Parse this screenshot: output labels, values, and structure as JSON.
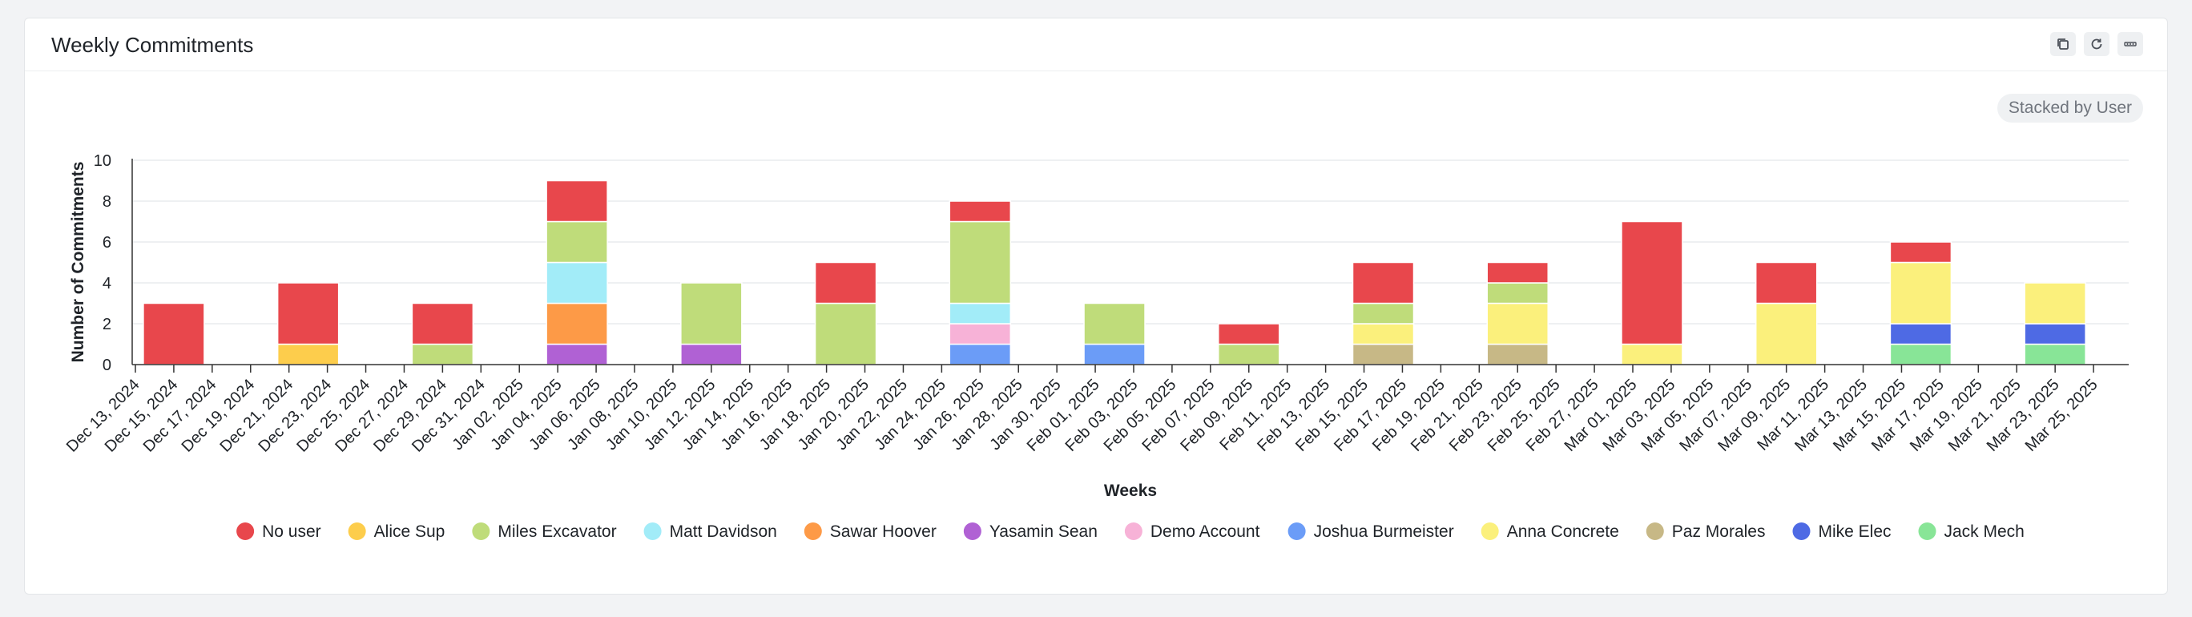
{
  "card": {
    "title": "Weekly Commitments",
    "stack_toggle": "Stacked by User",
    "tools": [
      {
        "icon": "copy-icon"
      },
      {
        "icon": "refresh-icon"
      },
      {
        "icon": "more-icon"
      }
    ]
  },
  "colors": {
    "No user": "#e8474c",
    "Alice Sup": "#fdcd4c",
    "Miles Excavator": "#bfdc7a",
    "Matt Davidson": "#a2ecf8",
    "Sawar Hoover": "#fd9a47",
    "Yasamin Sean": "#b061d4",
    "Demo Account": "#f7b2d7",
    "Joshua Burmeister": "#6b9cf7",
    "Anna Concrete": "#fbf07c",
    "Paz Morales": "#c7b886",
    "Mike Elec": "#4e6ae4",
    "Jack Mech": "#88e597"
  },
  "chart_data": {
    "type": "bar",
    "stacked": true,
    "xlabel": "Weeks",
    "ylabel": "Number of Commitments",
    "ylim": [
      0,
      10
    ],
    "yticks": [
      0,
      2,
      4,
      6,
      8,
      10
    ],
    "grid": true,
    "legend_position": "bottom",
    "x_ticks": [
      "Dec 13, 2024",
      "Dec 15, 2024",
      "Dec 17, 2024",
      "Dec 19, 2024",
      "Dec 21, 2024",
      "Dec 23, 2024",
      "Dec 25, 2024",
      "Dec 27, 2024",
      "Dec 29, 2024",
      "Dec 31, 2024",
      "Jan 02, 2025",
      "Jan 04, 2025",
      "Jan 06, 2025",
      "Jan 08, 2025",
      "Jan 10, 2025",
      "Jan 12, 2025",
      "Jan 14, 2025",
      "Jan 16, 2025",
      "Jan 18, 2025",
      "Jan 20, 2025",
      "Jan 22, 2025",
      "Jan 24, 2025",
      "Jan 26, 2025",
      "Jan 28, 2025",
      "Jan 30, 2025",
      "Feb 01, 2025",
      "Feb 03, 2025",
      "Feb 05, 2025",
      "Feb 07, 2025",
      "Feb 09, 2025",
      "Feb 11, 2025",
      "Feb 13, 2025",
      "Feb 15, 2025",
      "Feb 17, 2025",
      "Feb 19, 2025",
      "Feb 21, 2025",
      "Feb 23, 2025",
      "Feb 25, 2025",
      "Feb 27, 2025",
      "Mar 01, 2025",
      "Mar 03, 2025",
      "Mar 05, 2025",
      "Mar 07, 2025",
      "Mar 09, 2025",
      "Mar 11, 2025",
      "Mar 13, 2025",
      "Mar 15, 2025",
      "Mar 17, 2025",
      "Mar 19, 2025",
      "Mar 21, 2025",
      "Mar 23, 2025",
      "Mar 25, 2025"
    ],
    "bars": [
      {
        "x": "Dec 15, 2024",
        "segments": [
          [
            "No user",
            3
          ]
        ]
      },
      {
        "x": "Dec 22, 2024",
        "segments": [
          [
            "Alice Sup",
            1
          ],
          [
            "No user",
            3
          ]
        ]
      },
      {
        "x": "Dec 29, 2024",
        "segments": [
          [
            "Miles Excavator",
            1
          ],
          [
            "No user",
            2
          ]
        ]
      },
      {
        "x": "Jan 05, 2025",
        "segments": [
          [
            "Yasamin Sean",
            1
          ],
          [
            "Sawar Hoover",
            2
          ],
          [
            "Matt Davidson",
            2
          ],
          [
            "Miles Excavator",
            2
          ],
          [
            "No user",
            2
          ]
        ]
      },
      {
        "x": "Jan 12, 2025",
        "segments": [
          [
            "Yasamin Sean",
            1
          ],
          [
            "Miles Excavator",
            3
          ]
        ]
      },
      {
        "x": "Jan 19, 2025",
        "segments": [
          [
            "Miles Excavator",
            3
          ],
          [
            "No user",
            2
          ]
        ]
      },
      {
        "x": "Jan 26, 2025",
        "segments": [
          [
            "Joshua Burmeister",
            1
          ],
          [
            "Demo Account",
            1
          ],
          [
            "Matt Davidson",
            1
          ],
          [
            "Miles Excavator",
            4
          ],
          [
            "No user",
            1
          ]
        ]
      },
      {
        "x": "Feb 02, 2025",
        "segments": [
          [
            "Joshua Burmeister",
            1
          ],
          [
            "Miles Excavator",
            2
          ]
        ]
      },
      {
        "x": "Feb 09, 2025",
        "segments": [
          [
            "Miles Excavator",
            1
          ],
          [
            "No user",
            1
          ]
        ]
      },
      {
        "x": "Feb 16, 2025",
        "segments": [
          [
            "Paz Morales",
            1
          ],
          [
            "Anna Concrete",
            1
          ],
          [
            "Miles Excavator",
            1
          ],
          [
            "No user",
            2
          ]
        ]
      },
      {
        "x": "Feb 23, 2025",
        "segments": [
          [
            "Paz Morales",
            1
          ],
          [
            "Anna Concrete",
            2
          ],
          [
            "Miles Excavator",
            1
          ],
          [
            "No user",
            1
          ]
        ]
      },
      {
        "x": "Mar 02, 2025",
        "segments": [
          [
            "Anna Concrete",
            1
          ],
          [
            "No user",
            6
          ]
        ]
      },
      {
        "x": "Mar 09, 2025",
        "segments": [
          [
            "Anna Concrete",
            3
          ],
          [
            "No user",
            2
          ]
        ]
      },
      {
        "x": "Mar 16, 2025",
        "segments": [
          [
            "Jack Mech",
            1
          ],
          [
            "Mike Elec",
            1
          ],
          [
            "Anna Concrete",
            3
          ],
          [
            "No user",
            1
          ]
        ]
      },
      {
        "x": "Mar 23, 2025",
        "segments": [
          [
            "Jack Mech",
            1
          ],
          [
            "Mike Elec",
            1
          ],
          [
            "Anna Concrete",
            2
          ]
        ]
      }
    ],
    "legend": [
      "No user",
      "Alice Sup",
      "Miles Excavator",
      "Matt Davidson",
      "Sawar Hoover",
      "Yasamin Sean",
      "Demo Account",
      "Joshua Burmeister",
      "Anna Concrete",
      "Paz Morales",
      "Mike Elec",
      "Jack Mech"
    ]
  }
}
